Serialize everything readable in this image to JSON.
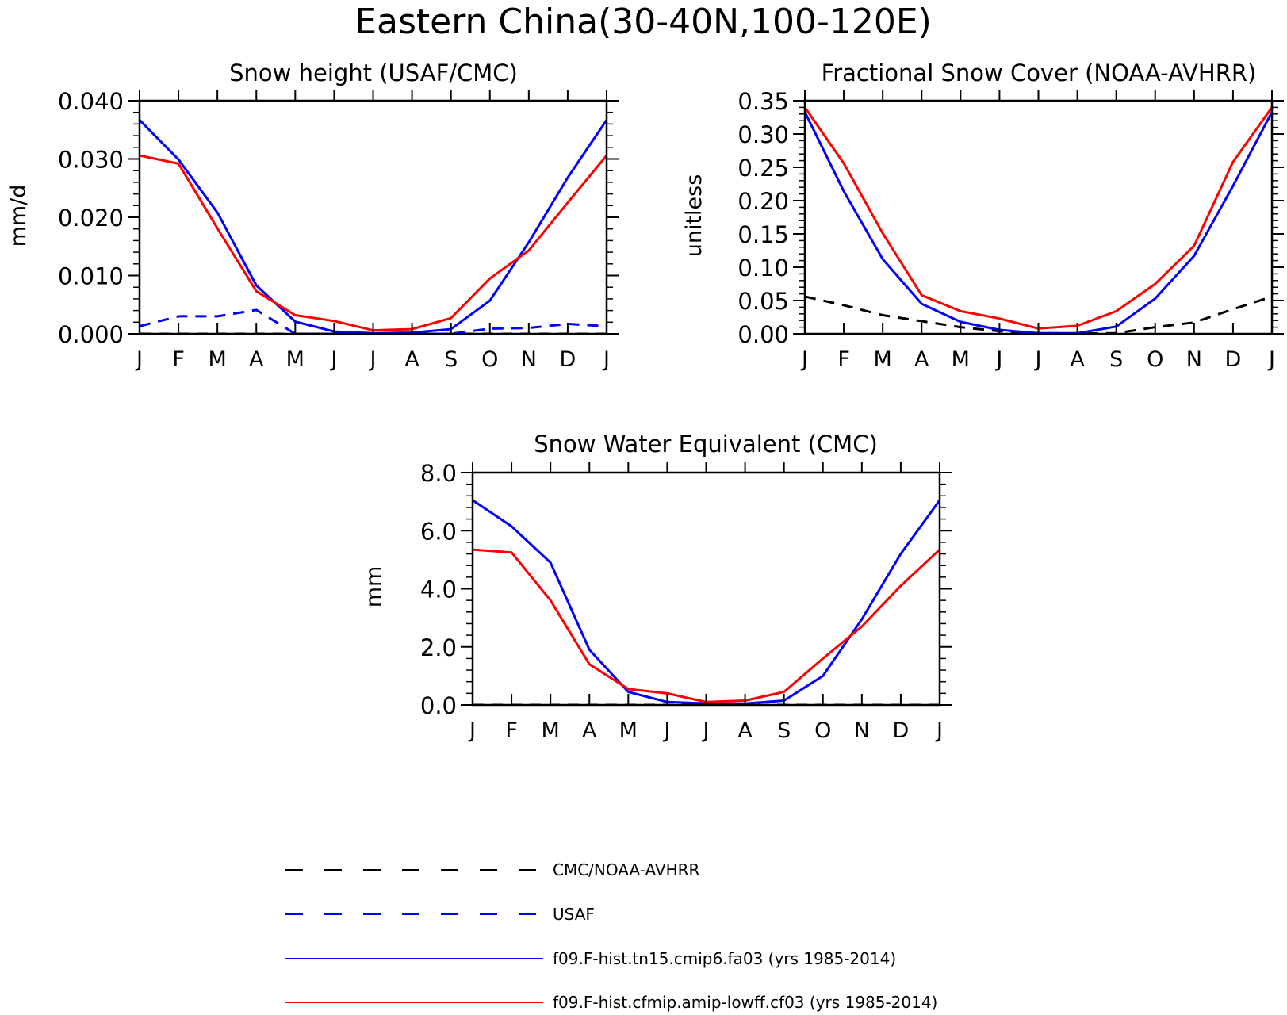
{
  "title": "Eastern China(30-40N,100-120E)",
  "legend": [
    {
      "label": "CMC/NOAA-AVHRR",
      "color": "#000000",
      "dash": true
    },
    {
      "label": "USAF",
      "color": "#0000ff",
      "dash": true
    },
    {
      "label": "f09.F-hist.tn15.cmip6.fa03 (yrs 1985-2014)",
      "color": "#0000ff",
      "dash": false
    },
    {
      "label": "f09.F-hist.cfmip.amip-lowff.cf03 (yrs 1985-2014)",
      "color": "#ff0000",
      "dash": false
    }
  ],
  "chart_data": [
    {
      "type": "line",
      "title": "Snow height (USAF/CMC)",
      "xlabel": "",
      "ylabel": "mm/d",
      "categories": [
        "J",
        "F",
        "M",
        "A",
        "M",
        "J",
        "J",
        "A",
        "S",
        "O",
        "N",
        "D",
        "J"
      ],
      "ylim": [
        0,
        0.04
      ],
      "yticks": [
        0,
        0.01,
        0.02,
        0.03,
        0.04
      ],
      "ytick_labels": [
        "0.000",
        "0.010",
        "0.020",
        "0.030",
        "0.040"
      ],
      "series": [
        {
          "name": "CMC/NOAA-AVHRR",
          "color": "#000000",
          "dashed": true,
          "values": [
            0,
            0,
            0,
            0,
            0,
            0,
            0,
            0,
            0,
            0,
            0,
            0,
            0
          ]
        },
        {
          "name": "USAF",
          "color": "#0000ff",
          "dashed": true,
          "values": [
            0.0013,
            0.003,
            0.003,
            0.0041,
            0,
            0,
            0,
            0,
            0,
            0.0009,
            0.001,
            0.0017,
            0.0013
          ]
        },
        {
          "name": "f09.F-hist.tn15.cmip6.fa03 (yrs 1985-2014)",
          "color": "#0000ff",
          "dashed": false,
          "values": [
            0.0367,
            0.0299,
            0.0208,
            0.0083,
            0.0021,
            0.0004,
            0.0001,
            0.0002,
            0.0008,
            0.0057,
            0.0157,
            0.0268,
            0.0367
          ]
        },
        {
          "name": "f09.F-hist.cfmip.amip-lowff.cf03 (yrs 1985-2014)",
          "color": "#ff0000",
          "dashed": false,
          "values": [
            0.0306,
            0.0292,
            0.0181,
            0.0073,
            0.0032,
            0.0022,
            0.0006,
            0.0008,
            0.0027,
            0.0095,
            0.0143,
            0.0225,
            0.0306
          ]
        }
      ]
    },
    {
      "type": "line",
      "title": "Fractional Snow Cover (NOAA-AVHRR)",
      "xlabel": "",
      "ylabel": "unitless",
      "categories": [
        "J",
        "F",
        "M",
        "A",
        "M",
        "J",
        "J",
        "A",
        "S",
        "O",
        "N",
        "D",
        "J"
      ],
      "ylim": [
        0,
        0.35
      ],
      "yticks": [
        0,
        0.05,
        0.1,
        0.15,
        0.2,
        0.25,
        0.3,
        0.35
      ],
      "ytick_labels": [
        "0.00",
        "0.05",
        "0.10",
        "0.15",
        "0.20",
        "0.25",
        "0.30",
        "0.35"
      ],
      "series": [
        {
          "name": "CMC/NOAA-AVHRR",
          "color": "#000000",
          "dashed": true,
          "values": [
            0.056,
            0.043,
            0.028,
            0.019,
            0.01,
            0.004,
            0.001,
            0.0005,
            0.001,
            0.01,
            0.017,
            0.037,
            0.056
          ]
        },
        {
          "name": "f09.F-hist.tn15.cmip6.fa03 (yrs 1985-2014)",
          "color": "#0000ff",
          "dashed": false,
          "values": [
            0.333,
            0.214,
            0.112,
            0.045,
            0.018,
            0.006,
            0.001,
            0.001,
            0.011,
            0.053,
            0.117,
            0.222,
            0.333
          ]
        },
        {
          "name": "f09.F-hist.cfmip.amip-lowff.cf03 (yrs 1985-2014)",
          "color": "#ff0000",
          "dashed": false,
          "values": [
            0.34,
            0.256,
            0.151,
            0.058,
            0.034,
            0.023,
            0.008,
            0.012,
            0.034,
            0.075,
            0.132,
            0.258,
            0.34
          ]
        }
      ]
    },
    {
      "type": "line",
      "title": "Snow Water Equivalent (CMC)",
      "xlabel": "",
      "ylabel": "mm",
      "categories": [
        "J",
        "F",
        "M",
        "A",
        "M",
        "J",
        "J",
        "A",
        "S",
        "O",
        "N",
        "D",
        "J"
      ],
      "ylim": [
        0,
        8
      ],
      "yticks": [
        0,
        2,
        4,
        6,
        8
      ],
      "ytick_labels": [
        "0.0",
        "2.0",
        "4.0",
        "6.0",
        "8.0"
      ],
      "series": [
        {
          "name": "CMC/NOAA-AVHRR",
          "color": "#000000",
          "dashed": true,
          "values": [
            0,
            0,
            0,
            0,
            0,
            0,
            0,
            0,
            0,
            0,
            0,
            0,
            0
          ]
        },
        {
          "name": "f09.F-hist.tn15.cmip6.fa03 (yrs 1985-2014)",
          "color": "#0000ff",
          "dashed": false,
          "values": [
            7.05,
            6.15,
            4.9,
            1.9,
            0.45,
            0.1,
            0.05,
            0.05,
            0.15,
            1.0,
            2.95,
            5.2,
            7.05
          ]
        },
        {
          "name": "f09.F-hist.cfmip.amip-lowff.cf03 (yrs 1985-2014)",
          "color": "#ff0000",
          "dashed": false,
          "values": [
            5.35,
            5.25,
            3.6,
            1.4,
            0.55,
            0.4,
            0.1,
            0.15,
            0.45,
            1.6,
            2.7,
            4.1,
            5.35
          ]
        }
      ]
    }
  ]
}
